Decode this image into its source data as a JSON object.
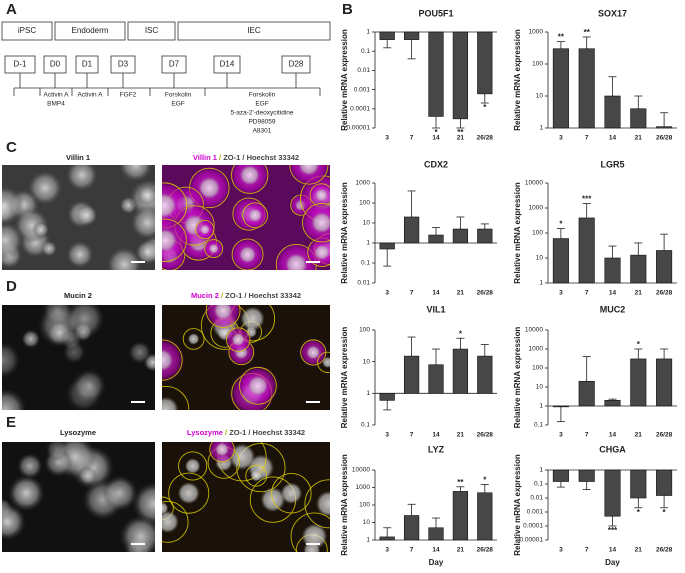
{
  "panel_labels": [
    "A",
    "B",
    "C",
    "D",
    "E"
  ],
  "timeline": {
    "stages": [
      "iPSC",
      "Endoderm",
      "ISC",
      "IEC"
    ],
    "days": [
      "D-1",
      "D0",
      "D1",
      "D3",
      "D7",
      "D14",
      "D28"
    ],
    "treatments": [
      [
        "Activin A",
        "BMP4"
      ],
      [
        "Activin A"
      ],
      [
        "FGF2"
      ],
      [
        "Forskolin",
        "EGF"
      ],
      [
        "Forskolin",
        "EGF",
        "5-aza-2'-deoxycitidine",
        "PD98059",
        "A8301"
      ]
    ]
  },
  "images": [
    {
      "title": "Villin 1",
      "overlay": [
        "Villin 1",
        " / ",
        "ZO-1",
        " / Hoechst 33342"
      ]
    },
    {
      "title": "Mucin 2",
      "overlay": [
        "Mucin 2",
        " / ",
        "ZO-1",
        " / Hoechst 33342"
      ]
    },
    {
      "title": "Lysozyme",
      "overlay": [
        "Lysozyme",
        " / ",
        "ZO-1",
        " / Hoechst 33342"
      ]
    }
  ],
  "chart_data": [
    {
      "type": "bar",
      "title": "POU5F1",
      "ylabel": "Relative mRNA expression",
      "categories": [
        "3",
        "7",
        "14",
        "21",
        "26/28"
      ],
      "values": [
        0.4,
        0.4,
        4e-05,
        3e-05,
        0.0006
      ],
      "error_ends": [
        0.15,
        0.04,
        1e-05,
        1e-05,
        0.0002
      ],
      "annotations": [
        null,
        null,
        "*",
        "**",
        "*"
      ],
      "ylim": [
        1e-05,
        1
      ],
      "yticks": [
        1,
        0.1,
        0.01,
        0.001,
        0.0001,
        1e-05
      ],
      "log_scale": true,
      "color": "#474747"
    },
    {
      "type": "bar",
      "title": "SOX17",
      "ylabel": "Relative mRNA expression",
      "categories": [
        "3",
        "7",
        "14",
        "21",
        "26/28"
      ],
      "values": [
        300,
        300,
        10,
        4,
        1.1
      ],
      "error_ends": [
        500,
        700,
        40,
        10,
        3
      ],
      "annotations": [
        "**",
        "**",
        null,
        null,
        null
      ],
      "ylim": [
        1,
        1000
      ],
      "yticks": [
        1000,
        100,
        10,
        1
      ],
      "log_scale": true,
      "color": "#474747"
    },
    {
      "type": "bar",
      "title": "CDX2",
      "ylabel": "Relative mRNA expression",
      "categories": [
        "3",
        "7",
        "14",
        "21",
        "26/28"
      ],
      "values": [
        0.5,
        20,
        2.5,
        5,
        5
      ],
      "error_ends": [
        0.07,
        400,
        6,
        20,
        9
      ],
      "annotations": [
        null,
        null,
        null,
        null,
        null
      ],
      "ylim": [
        0.01,
        1000
      ],
      "yticks": [
        1000,
        100,
        10,
        1,
        0.1,
        0.01
      ],
      "log_scale": true,
      "color": "#474747"
    },
    {
      "type": "bar",
      "title": "LGR5",
      "ylabel": "Relative mRNA expression",
      "categories": [
        "3",
        "7",
        "14",
        "21",
        "26/28"
      ],
      "values": [
        60,
        400,
        10,
        13,
        20
      ],
      "error_ends": [
        150,
        1500,
        30,
        40,
        90
      ],
      "annotations": [
        "*",
        "***",
        null,
        null,
        null
      ],
      "ylim": [
        1,
        10000
      ],
      "yticks": [
        10000,
        1000,
        100,
        10,
        1
      ],
      "log_scale": true,
      "color": "#474747"
    },
    {
      "type": "bar",
      "title": "VIL1",
      "ylabel": "Relative mRNA expression",
      "categories": [
        "3",
        "7",
        "14",
        "21",
        "26/28"
      ],
      "values": [
        0.6,
        15,
        8,
        25,
        15
      ],
      "error_ends": [
        0.3,
        60,
        25,
        55,
        35
      ],
      "annotations": [
        null,
        null,
        null,
        "*",
        null
      ],
      "ylim": [
        0.1,
        100
      ],
      "yticks": [
        100,
        10,
        1,
        0.1
      ],
      "log_scale": true,
      "color": "#474747"
    },
    {
      "type": "bar",
      "title": "MUC2",
      "ylabel": "Relative mRNA expression",
      "categories": [
        "3",
        "7",
        "14",
        "21",
        "26/28"
      ],
      "values": [
        0.9,
        20,
        2,
        300,
        300
      ],
      "error_ends": [
        0.15,
        400,
        2.3,
        1000,
        1000
      ],
      "annotations": [
        null,
        null,
        null,
        "*",
        null
      ],
      "ylim": [
        0.1,
        10000
      ],
      "yticks": [
        10000,
        1000,
        100,
        10,
        1,
        0.1
      ],
      "log_scale": true,
      "color": "#474747"
    },
    {
      "type": "bar",
      "title": "LYZ",
      "ylabel": "Relative mRNA expression",
      "xlabel": "Day",
      "categories": [
        "3",
        "7",
        "14",
        "21",
        "26/28"
      ],
      "values": [
        1.5,
        25,
        5,
        600,
        500
      ],
      "error_ends": [
        5,
        110,
        18,
        1100,
        1500
      ],
      "annotations": [
        null,
        null,
        null,
        "**",
        "*"
      ],
      "ylim": [
        1,
        10000
      ],
      "yticks": [
        10000,
        1000,
        100,
        10,
        1
      ],
      "log_scale": true,
      "color": "#474747"
    },
    {
      "type": "bar",
      "title": "CHGA",
      "ylabel": "Relative mRNA expression",
      "xlabel": "Day",
      "categories": [
        "3",
        "7",
        "14",
        "21",
        "26/28"
      ],
      "values": [
        0.15,
        0.15,
        0.0005,
        0.01,
        0.015
      ],
      "error_ends": [
        0.06,
        0.04,
        0.0001,
        0.002,
        0.002
      ],
      "annotations": [
        null,
        null,
        "***",
        "*",
        "*"
      ],
      "ylim": [
        1e-05,
        1
      ],
      "yticks": [
        1,
        0.1,
        0.01,
        0.001,
        0.0001,
        1e-05
      ],
      "log_scale": true,
      "color": "#474747"
    }
  ]
}
